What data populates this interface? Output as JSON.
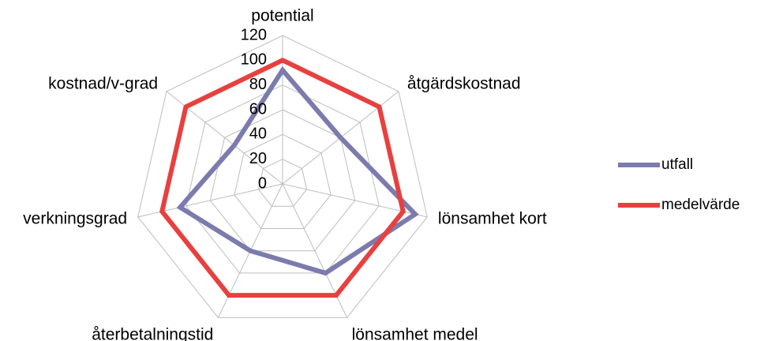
{
  "chart_data": {
    "type": "radar",
    "categories": [
      "potential",
      "åtgärdskostnad",
      "lönsamhet kort",
      "lönsamhet medel",
      "återbetalningstid",
      "verkningsgrad",
      "kostnad/v-grad"
    ],
    "series": [
      {
        "name": "utfall",
        "color": "#7b7bae",
        "values": [
          92,
          60,
          110,
          80,
          60,
          85,
          50
        ]
      },
      {
        "name": "medelvärde",
        "color": "#e8403f",
        "values": [
          100,
          100,
          100,
          100,
          100,
          100,
          100
        ]
      }
    ],
    "ylim": [
      0,
      120
    ],
    "yticks": [
      0,
      20,
      40,
      60,
      80,
      100,
      120
    ],
    "grid": true,
    "legend": "right"
  }
}
